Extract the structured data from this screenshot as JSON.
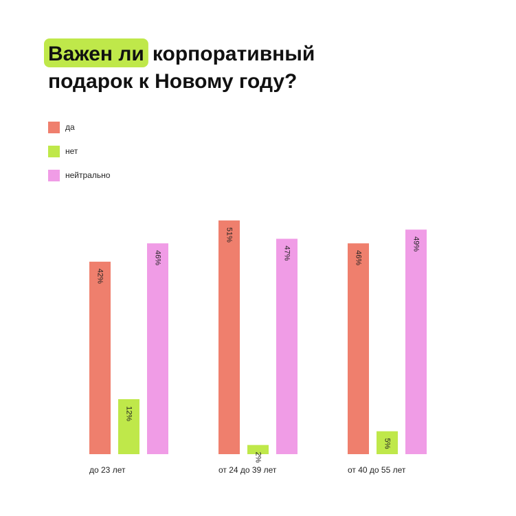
{
  "chart_data": {
    "type": "bar",
    "title": {
      "highlight": "Важен ли",
      "line1": "корпоративный",
      "line2": "подарок к Новому году?"
    },
    "categories": [
      "до 23 лет",
      "от 24 до 39 лет",
      "от 40 до 55 лет"
    ],
    "series": [
      {
        "name": "да",
        "color": "#ef7f6d",
        "values": [
          42,
          51,
          46
        ],
        "value_labels": [
          "42%",
          "51%",
          "46%"
        ]
      },
      {
        "name": "нет",
        "color": "#bfe84a",
        "values": [
          12,
          2,
          5
        ],
        "value_labels": [
          "12%",
          "2%",
          "5%"
        ]
      },
      {
        "name": "нейтрально",
        "color": "#f09ce6",
        "values": [
          46,
          47,
          49
        ],
        "value_labels": [
          "46%",
          "47%",
          "49%"
        ]
      }
    ]
  }
}
